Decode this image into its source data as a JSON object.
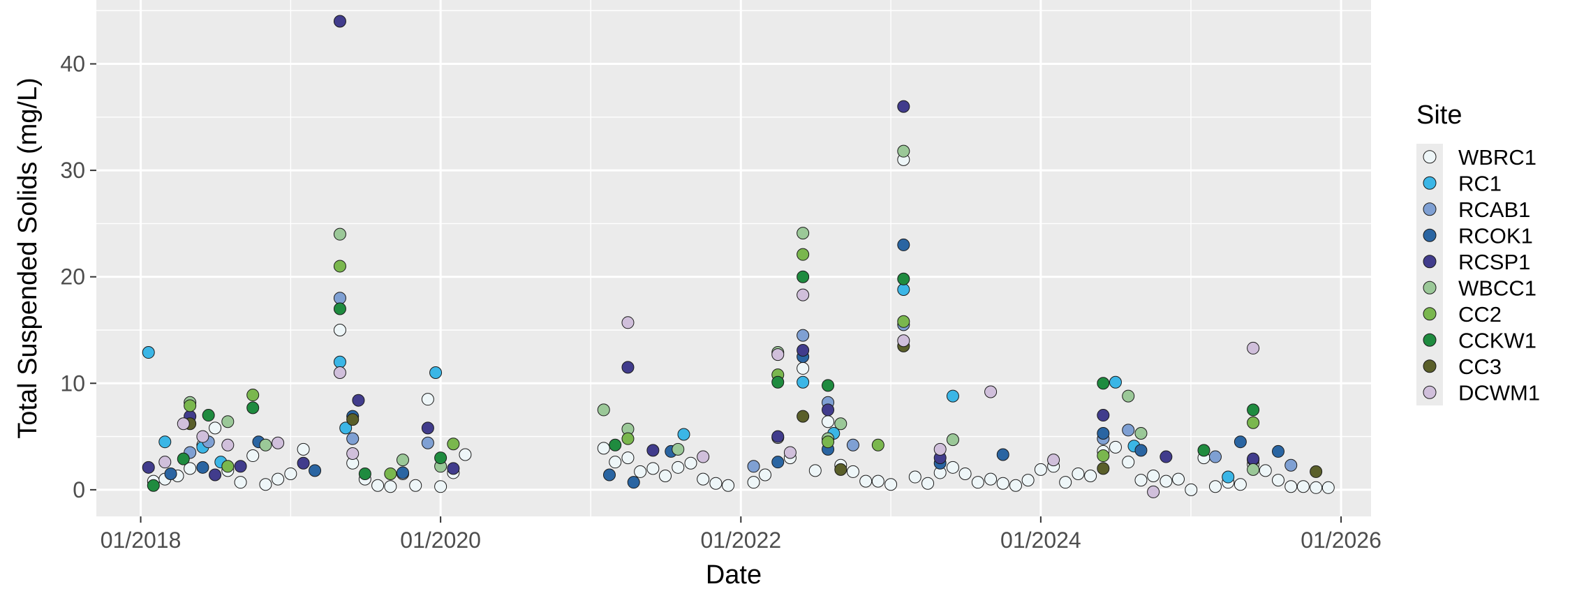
{
  "chart_data": {
    "type": "scatter",
    "title": "",
    "xlabel": "Date",
    "ylabel": "Total Suspended Solids (mg/L)",
    "xlim": [
      "2017-09-15",
      "2026-03-15"
    ],
    "ylim": [
      -2.5,
      46
    ],
    "x_ticks": [
      "2018-01-01",
      "2020-01-01",
      "2022-01-01",
      "2024-01-01",
      "2026-01-01"
    ],
    "x_tick_labels": [
      "01/2018",
      "01/2020",
      "01/2022",
      "01/2024",
      "01/2026"
    ],
    "y_ticks": [
      0,
      10,
      20,
      30,
      40
    ],
    "y_tick_labels": [
      "0",
      "10",
      "20",
      "30",
      "40"
    ],
    "grid": true,
    "legend": {
      "title": "Site",
      "position": "right"
    },
    "series": [
      {
        "name": "WBRC1",
        "color": "#eef6f8",
        "points": [
          [
            "2018-02-01",
            0.8
          ],
          [
            "2018-03-01",
            1.0
          ],
          [
            "2018-04-01",
            1.3
          ],
          [
            "2018-05-01",
            2.0
          ],
          [
            "2018-06-01",
            4.2
          ],
          [
            "2018-07-01",
            5.8
          ],
          [
            "2018-08-01",
            1.8
          ],
          [
            "2018-09-01",
            0.7
          ],
          [
            "2018-10-01",
            3.2
          ],
          [
            "2018-11-01",
            0.5
          ],
          [
            "2018-12-01",
            1.0
          ],
          [
            "2019-01-01",
            1.5
          ],
          [
            "2019-02-01",
            3.8
          ],
          [
            "2019-05-01",
            15.0
          ],
          [
            "2019-06-01",
            2.5
          ],
          [
            "2019-07-01",
            1.0
          ],
          [
            "2019-08-01",
            0.4
          ],
          [
            "2019-09-01",
            0.3
          ],
          [
            "2019-10-01",
            1.5
          ],
          [
            "2019-11-01",
            0.4
          ],
          [
            "2019-12-01",
            8.5
          ],
          [
            "2020-01-01",
            0.3
          ],
          [
            "2020-02-01",
            1.6
          ],
          [
            "2020-03-01",
            3.3
          ],
          [
            "2021-02-01",
            3.9
          ],
          [
            "2021-03-01",
            2.6
          ],
          [
            "2021-04-01",
            3.0
          ],
          [
            "2021-05-01",
            1.7
          ],
          [
            "2021-06-01",
            2.0
          ],
          [
            "2021-07-01",
            1.3
          ],
          [
            "2021-08-01",
            2.1
          ],
          [
            "2021-09-01",
            2.5
          ],
          [
            "2021-10-01",
            1.0
          ],
          [
            "2021-11-01",
            0.6
          ],
          [
            "2021-12-01",
            0.4
          ],
          [
            "2022-02-01",
            0.7
          ],
          [
            "2022-03-01",
            1.4
          ],
          [
            "2022-04-01",
            4.9
          ],
          [
            "2022-05-01",
            3.0
          ],
          [
            "2022-06-01",
            11.4
          ],
          [
            "2022-07-01",
            1.8
          ],
          [
            "2022-08-01",
            6.4
          ],
          [
            "2022-09-01",
            2.3
          ],
          [
            "2022-10-01",
            1.7
          ],
          [
            "2022-11-01",
            0.8
          ],
          [
            "2022-12-01",
            0.8
          ],
          [
            "2023-01-01",
            0.5
          ],
          [
            "2023-02-01",
            31.0
          ],
          [
            "2023-03-01",
            1.2
          ],
          [
            "2023-04-01",
            0.6
          ],
          [
            "2023-05-01",
            1.6
          ],
          [
            "2023-06-01",
            2.1
          ],
          [
            "2023-07-01",
            1.5
          ],
          [
            "2023-08-01",
            0.7
          ],
          [
            "2023-09-01",
            1.0
          ],
          [
            "2023-10-01",
            0.6
          ],
          [
            "2023-11-01",
            0.4
          ],
          [
            "2023-12-01",
            0.9
          ],
          [
            "2024-01-01",
            1.9
          ],
          [
            "2024-02-01",
            2.2
          ],
          [
            "2024-03-01",
            0.7
          ],
          [
            "2024-04-01",
            1.5
          ],
          [
            "2024-05-01",
            1.3
          ],
          [
            "2024-06-01",
            3.6
          ],
          [
            "2024-07-01",
            4.0
          ],
          [
            "2024-08-01",
            2.6
          ],
          [
            "2024-09-01",
            0.9
          ],
          [
            "2024-10-01",
            1.3
          ],
          [
            "2024-11-01",
            0.8
          ],
          [
            "2024-12-01",
            1.0
          ],
          [
            "2025-01-01",
            0.0
          ],
          [
            "2025-02-01",
            3.0
          ],
          [
            "2025-03-01",
            0.3
          ],
          [
            "2025-04-01",
            0.7
          ],
          [
            "2025-05-01",
            0.5
          ],
          [
            "2025-06-01",
            2.4
          ],
          [
            "2025-07-01",
            1.8
          ],
          [
            "2025-08-01",
            0.9
          ],
          [
            "2025-09-01",
            0.3
          ],
          [
            "2025-10-01",
            0.3
          ],
          [
            "2025-11-01",
            0.2
          ],
          [
            "2025-12-01",
            0.2
          ]
        ]
      },
      {
        "name": "RC1",
        "color": "#3bb6e6",
        "points": [
          [
            "2018-01-20",
            12.9
          ],
          [
            "2018-03-01",
            4.5
          ],
          [
            "2018-06-01",
            4.0
          ],
          [
            "2018-07-15",
            2.6
          ],
          [
            "2019-05-01",
            12.0
          ],
          [
            "2019-05-15",
            5.8
          ],
          [
            "2019-12-20",
            11.0
          ],
          [
            "2021-08-15",
            5.2
          ],
          [
            "2022-06-01",
            10.1
          ],
          [
            "2022-08-15",
            5.3
          ],
          [
            "2023-02-01",
            18.8
          ],
          [
            "2023-06-01",
            8.8
          ],
          [
            "2024-07-01",
            10.1
          ],
          [
            "2024-08-15",
            4.1
          ],
          [
            "2025-04-01",
            1.2
          ]
        ]
      },
      {
        "name": "RCAB1",
        "color": "#7fa0d3",
        "points": [
          [
            "2018-05-01",
            3.5
          ],
          [
            "2018-06-15",
            4.5
          ],
          [
            "2019-05-01",
            18.0
          ],
          [
            "2019-06-01",
            4.8
          ],
          [
            "2019-12-01",
            4.4
          ],
          [
            "2022-02-01",
            2.2
          ],
          [
            "2022-06-01",
            14.5
          ],
          [
            "2022-08-01",
            8.2
          ],
          [
            "2022-10-01",
            4.2
          ],
          [
            "2023-02-01",
            15.5
          ],
          [
            "2024-06-01",
            4.8
          ],
          [
            "2024-08-01",
            5.6
          ],
          [
            "2025-03-01",
            3.1
          ],
          [
            "2025-06-01",
            2.8
          ],
          [
            "2025-09-01",
            2.3
          ]
        ]
      },
      {
        "name": "RCOK1",
        "color": "#2a65a2",
        "points": [
          [
            "2018-03-15",
            1.5
          ],
          [
            "2018-06-01",
            2.1
          ],
          [
            "2018-10-15",
            4.5
          ],
          [
            "2019-03-01",
            1.8
          ],
          [
            "2019-06-01",
            6.9
          ],
          [
            "2019-10-01",
            1.6
          ],
          [
            "2021-02-15",
            1.4
          ],
          [
            "2021-04-15",
            0.7
          ],
          [
            "2021-07-15",
            3.6
          ],
          [
            "2022-04-01",
            2.6
          ],
          [
            "2022-06-01",
            12.5
          ],
          [
            "2022-08-01",
            3.8
          ],
          [
            "2023-02-01",
            23.0
          ],
          [
            "2023-05-01",
            2.5
          ],
          [
            "2023-10-01",
            3.3
          ],
          [
            "2024-06-01",
            5.3
          ],
          [
            "2024-09-01",
            3.7
          ],
          [
            "2025-05-01",
            4.5
          ],
          [
            "2025-08-01",
            3.6
          ]
        ]
      },
      {
        "name": "RCSP1",
        "color": "#413c8c",
        "points": [
          [
            "2018-01-20",
            2.1
          ],
          [
            "2018-05-01",
            6.9
          ],
          [
            "2018-07-01",
            1.4
          ],
          [
            "2018-09-01",
            2.2
          ],
          [
            "2019-02-01",
            2.5
          ],
          [
            "2019-05-01",
            44.0
          ],
          [
            "2019-06-15",
            8.4
          ],
          [
            "2019-12-01",
            5.8
          ],
          [
            "2020-02-01",
            2.0
          ],
          [
            "2021-04-01",
            11.5
          ],
          [
            "2021-06-01",
            3.7
          ],
          [
            "2022-04-01",
            5.0
          ],
          [
            "2022-06-01",
            13.1
          ],
          [
            "2022-08-01",
            7.5
          ],
          [
            "2023-02-01",
            36.0
          ],
          [
            "2023-05-01",
            3.0
          ],
          [
            "2024-06-01",
            7.0
          ],
          [
            "2024-11-01",
            3.1
          ],
          [
            "2025-06-01",
            2.9
          ]
        ]
      },
      {
        "name": "WBCC1",
        "color": "#9bc898",
        "points": [
          [
            "2018-05-01",
            8.2
          ],
          [
            "2018-08-01",
            6.4
          ],
          [
            "2018-11-01",
            4.2
          ],
          [
            "2019-05-01",
            24.0
          ],
          [
            "2019-10-01",
            2.8
          ],
          [
            "2020-01-01",
            2.2
          ],
          [
            "2021-02-01",
            7.5
          ],
          [
            "2021-04-01",
            5.7
          ],
          [
            "2021-08-01",
            3.8
          ],
          [
            "2022-04-01",
            12.9
          ],
          [
            "2022-06-01",
            24.1
          ],
          [
            "2022-08-01",
            4.8
          ],
          [
            "2022-09-01",
            6.2
          ],
          [
            "2023-02-01",
            31.8
          ],
          [
            "2023-06-01",
            4.7
          ],
          [
            "2024-08-01",
            8.8
          ],
          [
            "2024-09-01",
            5.3
          ],
          [
            "2025-06-01",
            1.9
          ]
        ]
      },
      {
        "name": "CC2",
        "color": "#7ab74e",
        "points": [
          [
            "2018-05-01",
            7.9
          ],
          [
            "2018-08-01",
            2.2
          ],
          [
            "2018-10-01",
            8.9
          ],
          [
            "2019-05-01",
            21.0
          ],
          [
            "2019-09-01",
            1.5
          ],
          [
            "2020-02-01",
            4.3
          ],
          [
            "2021-04-01",
            4.8
          ],
          [
            "2022-04-01",
            10.8
          ],
          [
            "2022-06-01",
            22.1
          ],
          [
            "2022-08-01",
            4.5
          ],
          [
            "2022-12-01",
            4.2
          ],
          [
            "2023-02-01",
            15.8
          ],
          [
            "2024-06-01",
            3.2
          ],
          [
            "2025-06-01",
            6.3
          ]
        ]
      },
      {
        "name": "CCKW1",
        "color": "#1f8b3f",
        "points": [
          [
            "2018-02-01",
            0.4
          ],
          [
            "2018-04-15",
            2.9
          ],
          [
            "2018-06-15",
            7.0
          ],
          [
            "2018-10-01",
            7.7
          ],
          [
            "2019-05-01",
            17.0
          ],
          [
            "2019-07-01",
            1.5
          ],
          [
            "2020-01-01",
            3.0
          ],
          [
            "2021-03-01",
            4.2
          ],
          [
            "2022-04-01",
            10.1
          ],
          [
            "2022-06-01",
            20.0
          ],
          [
            "2022-08-01",
            9.8
          ],
          [
            "2023-02-01",
            19.8
          ],
          [
            "2024-06-01",
            10.0
          ],
          [
            "2025-02-01",
            3.7
          ],
          [
            "2025-06-01",
            7.5
          ]
        ]
      },
      {
        "name": "CC3",
        "color": "#5a5f2a",
        "points": [
          [
            "2018-05-01",
            6.2
          ],
          [
            "2019-06-01",
            6.6
          ],
          [
            "2022-06-01",
            6.9
          ],
          [
            "2022-09-01",
            1.9
          ],
          [
            "2023-02-01",
            13.5
          ],
          [
            "2024-06-01",
            2.0
          ],
          [
            "2025-11-01",
            1.7
          ]
        ]
      },
      {
        "name": "DCWM1",
        "color": "#d0bfdb",
        "points": [
          [
            "2018-03-01",
            2.6
          ],
          [
            "2018-04-15",
            6.2
          ],
          [
            "2018-06-01",
            5.0
          ],
          [
            "2018-08-01",
            4.2
          ],
          [
            "2018-12-01",
            4.4
          ],
          [
            "2019-05-01",
            11.0
          ],
          [
            "2019-06-01",
            3.4
          ],
          [
            "2021-04-01",
            15.7
          ],
          [
            "2021-10-01",
            3.1
          ],
          [
            "2022-04-01",
            12.7
          ],
          [
            "2022-05-01",
            3.5
          ],
          [
            "2022-06-01",
            18.3
          ],
          [
            "2023-02-01",
            14.0
          ],
          [
            "2023-05-01",
            3.8
          ],
          [
            "2023-09-01",
            9.2
          ],
          [
            "2024-02-01",
            2.8
          ],
          [
            "2024-10-01",
            -0.2
          ],
          [
            "2025-06-01",
            13.3
          ]
        ]
      }
    ]
  }
}
